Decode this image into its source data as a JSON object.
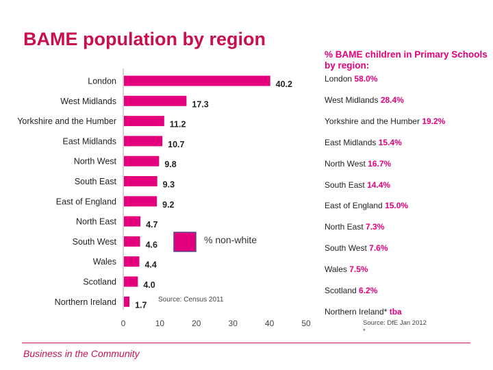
{
  "title": "BAME population by region",
  "chart_data": {
    "type": "bar",
    "orientation": "horizontal",
    "categories": [
      "London",
      "West Midlands",
      "Yorkshire and the Humber",
      "East Midlands",
      "North West",
      "South East",
      "East of England",
      "North East",
      "South West",
      "Wales",
      "Scotland",
      "Northern Ireland"
    ],
    "values": [
      40.2,
      17.3,
      11.2,
      10.7,
      9.8,
      9.3,
      9.2,
      4.7,
      4.6,
      4.4,
      4.0,
      1.7
    ],
    "value_labels": [
      "40.2",
      "17.3",
      "11.2",
      "10.7",
      "9.8",
      "9.3",
      "9.2",
      "4.7",
      "4.6",
      "4.4",
      "4.0",
      "1.7"
    ],
    "series_name": "% non-white",
    "xlim": [
      0,
      50
    ],
    "xticks": [
      0,
      10,
      20,
      30,
      40,
      50
    ],
    "source": "Source: Census 2011",
    "bar_color": "#e4007c",
    "legend_color": "#e4007c"
  },
  "right_panel": {
    "heading": "% BAME children in Primary Schools by region:",
    "items": [
      {
        "region": "London",
        "value": "58.0%"
      },
      {
        "region": "West Midlands",
        "value": "28.4%"
      },
      {
        "region": "Yorkshire and the Humber",
        "value": "19.2%"
      },
      {
        "region": "East Midlands",
        "value": "15.4%"
      },
      {
        "region": "North West",
        "value": "16.7%"
      },
      {
        "region": "South East",
        "value": "14.4%"
      },
      {
        "region": "East of England",
        "value": "15.0%"
      },
      {
        "region": "North East",
        "value": "7.3%"
      },
      {
        "region": "South West",
        "value": "7.6%"
      },
      {
        "region": "Wales",
        "value": "7.5%"
      },
      {
        "region": "Scotland",
        "value": "6.2%"
      },
      {
        "region": "Northern Ireland*",
        "value": "tba"
      }
    ],
    "source_line1": "Source: DfE Jan 2012",
    "source_line2": "*"
  },
  "footer": "Business in the Community"
}
